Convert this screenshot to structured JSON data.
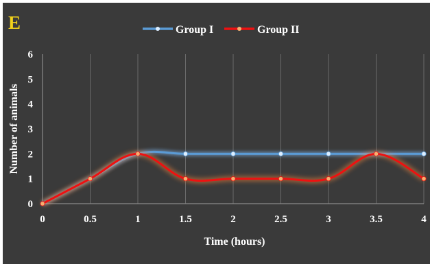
{
  "panel_label": "E",
  "chart_data": {
    "type": "line",
    "x": [
      0,
      0.5,
      1,
      1.5,
      2,
      2.5,
      3,
      3.5,
      4
    ],
    "x_tick_labels": [
      "0",
      "0.5",
      "1",
      "1.5",
      "2",
      "2.5",
      "3",
      "3.5",
      "4"
    ],
    "y_ticks": [
      0,
      1,
      2,
      3,
      4,
      5,
      6
    ],
    "xlim": [
      0,
      4
    ],
    "ylim": [
      0,
      6
    ],
    "xlabel": "Time (hours)",
    "ylabel": "Number of animals",
    "grid": "vertical",
    "legend_position": "top-center",
    "series": [
      {
        "name": "Group I",
        "values": [
          0,
          1,
          2,
          2,
          2,
          2,
          2,
          2,
          2
        ],
        "color": "#5b9bd5",
        "marker_color": "#ddeeff"
      },
      {
        "name": "Group II",
        "values": [
          0,
          1,
          2,
          1,
          1,
          1,
          1,
          2,
          1
        ],
        "color": "#ee1111",
        "marker_color": "#f5b070"
      }
    ],
    "background_color": "#3a3a3a"
  }
}
